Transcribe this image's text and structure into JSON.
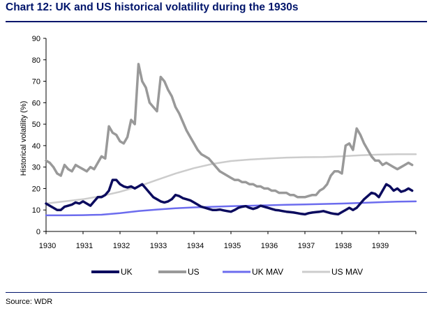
{
  "header": {
    "title": "Chart 12: UK and US historical volatility during the 1930s"
  },
  "footer": {
    "source": "Source: WDR"
  },
  "colors": {
    "uk": "#0b0b5e",
    "us": "#999999",
    "uk_mav": "#6c6cee",
    "us_mav": "#cccccc",
    "brand": "#00156b"
  },
  "chart_data": {
    "type": "line",
    "title": "Chart 12: UK and US historical volatility during the 1930s",
    "xlabel": "",
    "ylabel": "Historical volatility (%)",
    "xlim": [
      1930,
      1940
    ],
    "ylim": [
      0,
      90
    ],
    "xticks": [
      "1930",
      "1931",
      "1932",
      "1933",
      "1934",
      "1935",
      "1936",
      "1937",
      "1938",
      "1939"
    ],
    "yticks": [
      "0",
      "10",
      "20",
      "30",
      "40",
      "50",
      "60",
      "70",
      "80",
      "90"
    ],
    "grid": false,
    "legend": "bottom",
    "series": [
      {
        "name": "UK",
        "x": [
          1930,
          1930.1,
          1930.2,
          1930.3,
          1930.4,
          1930.5,
          1930.6,
          1930.7,
          1930.8,
          1930.9,
          1931,
          1931.1,
          1931.2,
          1931.3,
          1931.4,
          1931.5,
          1931.6,
          1931.7,
          1931.8,
          1931.9,
          1932,
          1932.1,
          1932.2,
          1932.3,
          1932.4,
          1932.5,
          1932.6,
          1932.7,
          1932.8,
          1932.9,
          1933,
          1933.1,
          1933.2,
          1933.3,
          1933.4,
          1933.5,
          1933.6,
          1933.7,
          1933.8,
          1933.9,
          1934,
          1934.1,
          1934.2,
          1934.3,
          1934.4,
          1934.5,
          1934.6,
          1934.7,
          1934.8,
          1934.9,
          1935,
          1935.1,
          1935.2,
          1935.3,
          1935.4,
          1935.5,
          1935.6,
          1935.7,
          1935.8,
          1935.9,
          1936,
          1936.1,
          1936.2,
          1936.3,
          1936.4,
          1936.5,
          1936.6,
          1936.7,
          1936.8,
          1936.9,
          1937,
          1937.1,
          1937.2,
          1937.3,
          1937.4,
          1937.5,
          1937.6,
          1937.7,
          1937.8,
          1937.9,
          1938,
          1938.1,
          1938.2,
          1938.3,
          1938.4,
          1938.5,
          1938.6,
          1938.7,
          1938.8,
          1938.9,
          1939,
          1939.1,
          1939.2,
          1939.3,
          1939.4,
          1939.5,
          1939.6,
          1939.7,
          1939.8,
          1939.9
        ],
        "values": [
          13,
          12,
          11,
          10,
          10,
          11.5,
          12,
          12.5,
          13.5,
          13,
          14,
          13,
          12,
          14,
          16,
          16,
          17,
          19,
          24,
          24,
          22,
          21,
          20.5,
          21,
          20,
          21,
          22,
          20,
          18,
          16,
          15,
          14,
          13.5,
          14,
          15,
          17,
          16.5,
          15.5,
          15,
          14.5,
          13.5,
          12.5,
          11.5,
          11,
          10.5,
          10,
          10,
          10.2,
          9.8,
          9.5,
          9.2,
          10,
          11,
          11.5,
          11.8,
          11,
          10.5,
          11,
          12,
          11.5,
          11,
          10.5,
          10,
          9.8,
          9.5,
          9.2,
          9,
          8.8,
          8.5,
          8.2,
          8,
          8.5,
          8.8,
          9,
          9.2,
          9.5,
          9,
          8.5,
          8.2,
          8,
          9,
          10,
          11,
          10,
          11,
          13,
          15,
          16.5,
          18,
          17.5,
          16,
          19,
          22,
          21,
          19,
          20,
          18.5,
          19,
          20,
          19
        ]
      },
      {
        "name": "US",
        "x": [
          1930,
          1930.1,
          1930.2,
          1930.3,
          1930.4,
          1930.5,
          1930.6,
          1930.7,
          1930.8,
          1930.9,
          1931,
          1931.1,
          1931.2,
          1931.3,
          1931.4,
          1931.5,
          1931.6,
          1931.7,
          1931.8,
          1931.9,
          1932,
          1932.1,
          1932.2,
          1932.3,
          1932.4,
          1932.5,
          1932.6,
          1932.7,
          1932.8,
          1932.9,
          1933,
          1933.1,
          1933.2,
          1933.3,
          1933.4,
          1933.5,
          1933.6,
          1933.7,
          1933.8,
          1933.9,
          1934,
          1934.1,
          1934.2,
          1934.3,
          1934.4,
          1934.5,
          1934.6,
          1934.7,
          1934.8,
          1934.9,
          1935,
          1935.1,
          1935.2,
          1935.3,
          1935.4,
          1935.5,
          1935.6,
          1935.7,
          1935.8,
          1935.9,
          1936,
          1936.1,
          1936.2,
          1936.3,
          1936.4,
          1936.5,
          1936.6,
          1936.7,
          1936.8,
          1936.9,
          1937,
          1937.1,
          1937.2,
          1937.3,
          1937.4,
          1937.5,
          1937.6,
          1937.7,
          1937.8,
          1937.9,
          1938,
          1938.1,
          1938.2,
          1938.3,
          1938.4,
          1938.5,
          1938.6,
          1938.7,
          1938.8,
          1938.9,
          1939,
          1939.1,
          1939.2,
          1939.3,
          1939.4,
          1939.5,
          1939.6,
          1939.7,
          1939.8,
          1939.9
        ],
        "values": [
          33,
          32,
          30,
          27,
          26,
          31,
          29,
          28,
          31,
          30,
          29,
          28,
          30,
          29,
          32,
          35,
          34,
          49,
          46,
          45,
          42,
          41,
          44,
          52,
          50,
          78,
          70,
          67,
          60,
          58,
          56,
          72,
          70,
          66,
          63,
          58,
          55,
          51,
          47,
          44,
          41,
          38,
          36,
          35,
          34,
          32,
          30,
          28,
          27,
          26,
          25,
          24,
          24,
          23,
          23,
          22,
          22,
          21,
          21,
          20,
          20,
          19,
          19,
          18,
          18,
          18,
          17,
          17,
          16,
          16,
          16,
          16.5,
          17,
          17,
          19,
          20,
          22,
          26,
          28,
          28,
          27,
          40,
          41,
          38,
          48,
          45,
          41,
          38,
          35,
          33,
          33,
          31,
          32,
          31,
          30,
          29,
          30,
          31,
          32,
          31
        ]
      },
      {
        "name": "UK MAV",
        "x": [
          1930,
          1930.5,
          1931,
          1931.5,
          1932,
          1932.5,
          1933,
          1933.5,
          1934,
          1934.5,
          1935,
          1935.5,
          1936,
          1936.5,
          1937,
          1937.5,
          1938,
          1938.5,
          1939,
          1939.5,
          1940
        ],
        "values": [
          7.5,
          7.5,
          7.6,
          7.8,
          8.5,
          9.5,
          10.2,
          10.8,
          11.2,
          11.5,
          11.8,
          12,
          12.2,
          12.4,
          12.6,
          12.8,
          13,
          13.3,
          13.6,
          13.9,
          14
        ]
      },
      {
        "name": "US MAV",
        "x": [
          1930,
          1930.5,
          1931,
          1931.5,
          1932,
          1932.5,
          1933,
          1933.5,
          1934,
          1934.5,
          1935,
          1935.5,
          1936,
          1936.5,
          1937,
          1937.5,
          1938,
          1938.5,
          1939,
          1939.5,
          1940
        ],
        "values": [
          13,
          14,
          15,
          16.5,
          18.5,
          21,
          24,
          27,
          29.5,
          31.5,
          32.8,
          33.5,
          34,
          34.4,
          34.6,
          34.7,
          35,
          35.5,
          35.8,
          36,
          36
        ]
      }
    ]
  }
}
